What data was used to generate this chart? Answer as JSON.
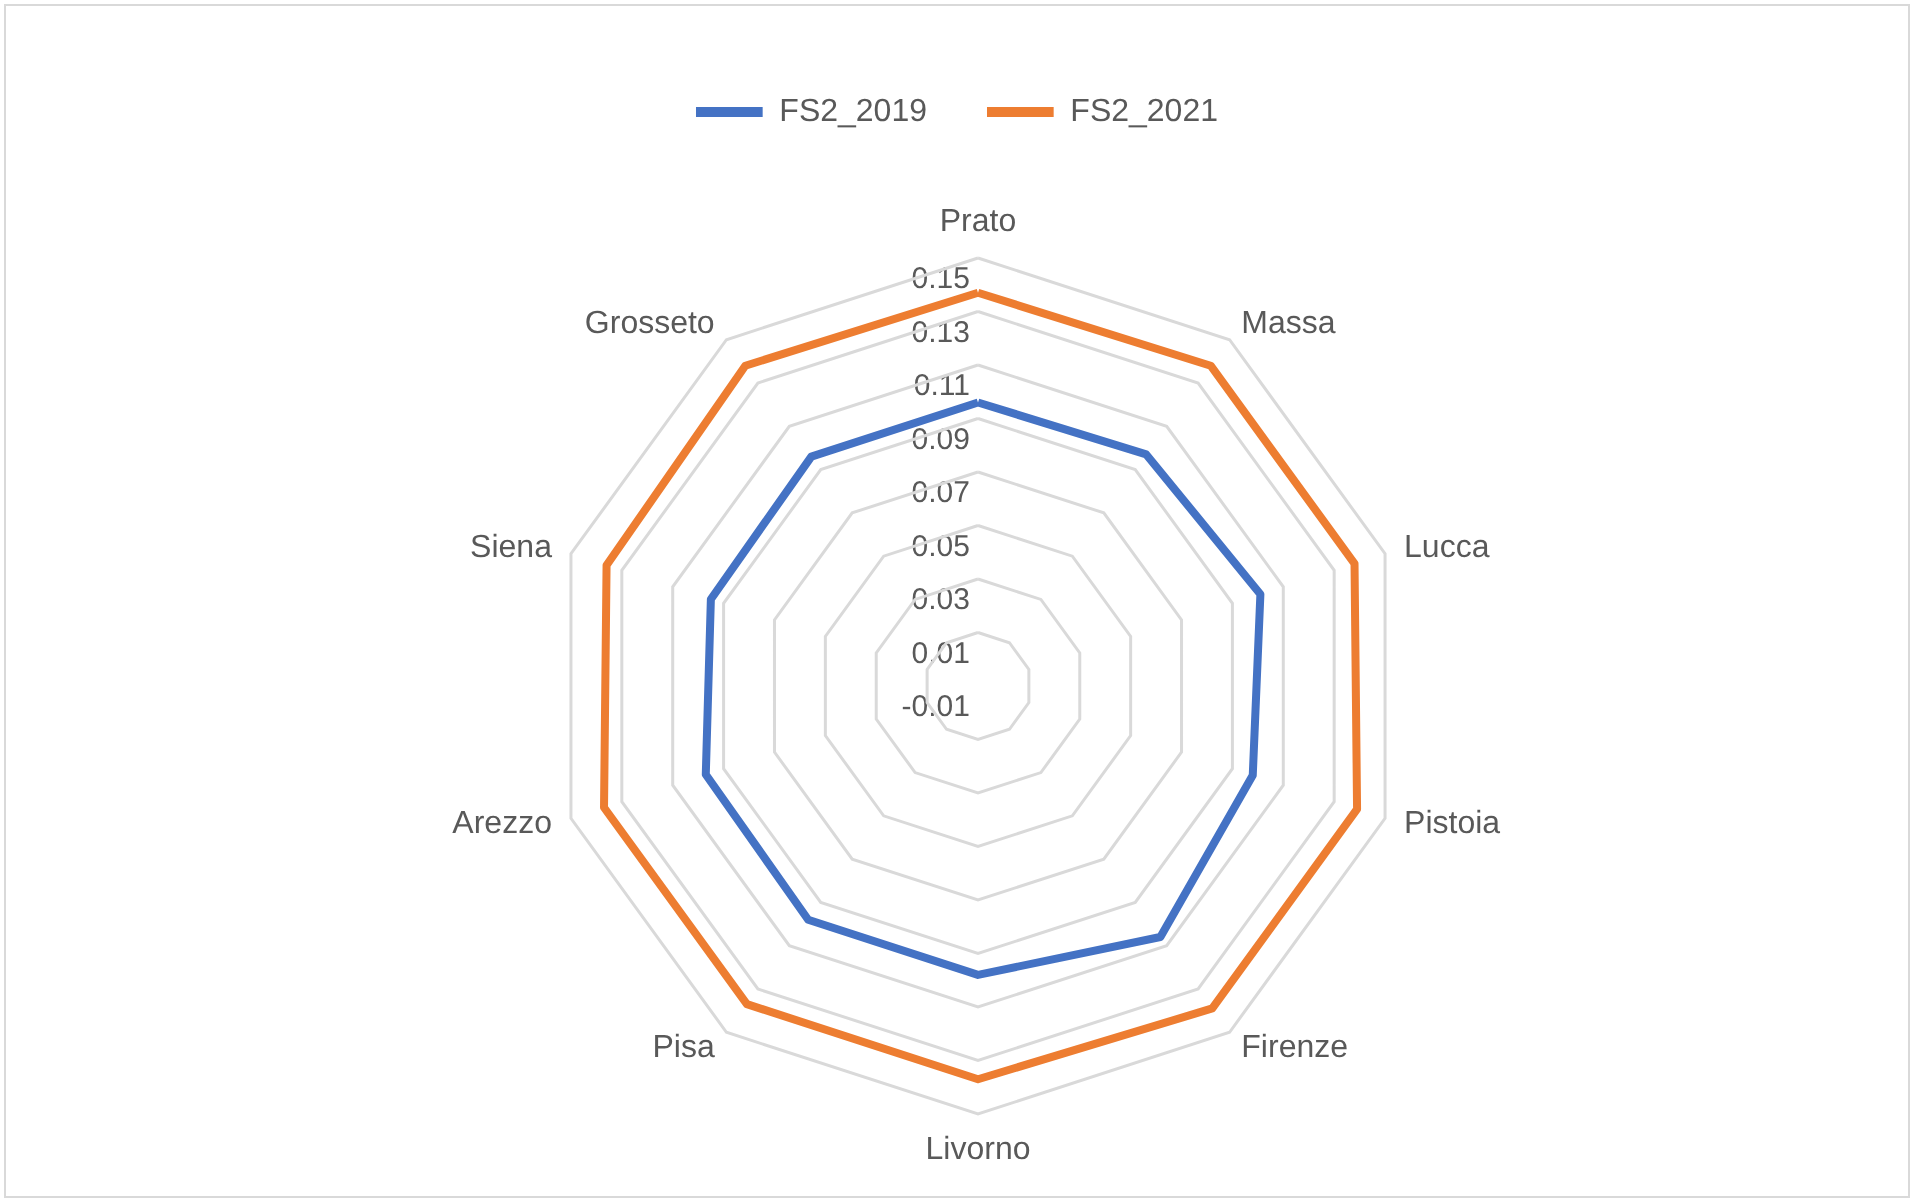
{
  "chart_data": {
    "type": "radar",
    "categories": [
      "Prato",
      "Massa",
      "Lucca",
      "Pistoia",
      "Firenze",
      "Livorno",
      "Pisa",
      "Arezzo",
      "Siena",
      "Grosseto"
    ],
    "series": [
      {
        "name": "FS2_2019",
        "color": "#4472c4",
        "values": [
          0.096,
          0.097,
          0.101,
          0.098,
          0.106,
          0.098,
          0.098,
          0.097,
          0.095,
          0.096
        ]
      },
      {
        "name": "FS2_2021",
        "color": "#ed7d31",
        "values": [
          0.137,
          0.138,
          0.138,
          0.139,
          0.139,
          0.137,
          0.137,
          0.137,
          0.136,
          0.138
        ]
      }
    ],
    "ylim": [
      -0.01,
      0.15
    ],
    "yticks": [
      -0.01,
      0.01,
      0.03,
      0.05,
      0.07,
      0.09,
      0.11,
      0.13,
      0.15
    ],
    "grid": true,
    "legend": "top",
    "marker": "none"
  }
}
